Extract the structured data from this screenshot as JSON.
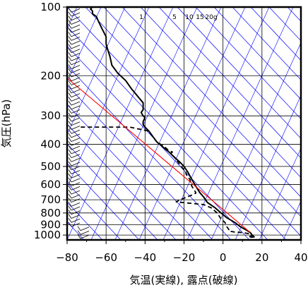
{
  "chart_data": {
    "type": "line",
    "title": "",
    "xlabel": "気温(実線), 露点(破線)",
    "ylabel": "気圧(hPa)",
    "xlim": [
      -80,
      40
    ],
    "ylim": [
      1050,
      100
    ],
    "y_scale": "log",
    "x_ticks": [
      -80,
      -60,
      -40,
      -20,
      0,
      20,
      40
    ],
    "x_tick_labels": [
      "−80",
      "−60",
      "−40",
      "−20",
      "0",
      "20",
      "40"
    ],
    "y_ticks": [
      100,
      200,
      300,
      400,
      500,
      600,
      700,
      800,
      900,
      1000
    ],
    "y_tick_labels": [
      "100",
      "200",
      "300",
      "400",
      "500",
      "600",
      "700",
      "800",
      "900",
      "1000"
    ],
    "mixing_ratio_labels": [
      "1",
      "5",
      "10",
      "15",
      "20g"
    ],
    "mixing_ratio_values": [
      1,
      5,
      10,
      15,
      20
    ],
    "colors": {
      "temperature": "#000000",
      "dewpoint": "#000000",
      "reference_line": "#ff0000",
      "background_lines": "#0000ff",
      "grid": "#000000"
    },
    "series": [
      {
        "style": "solid",
        "points": [
          [
            -67,
            100
          ],
          [
            -68,
            102
          ],
          [
            -67,
            104
          ],
          [
            -67,
            107
          ],
          [
            -65,
            110
          ],
          [
            -64,
            115
          ],
          [
            -62,
            125
          ],
          [
            -60,
            135
          ],
          [
            -60,
            145
          ],
          [
            -59,
            155
          ],
          [
            -58,
            165
          ],
          [
            -57,
            180
          ],
          [
            -54,
            195
          ],
          [
            -50,
            210
          ],
          [
            -47,
            228
          ],
          [
            -44,
            245
          ],
          [
            -41,
            263
          ],
          [
            -41,
            275
          ],
          [
            -41,
            282
          ],
          [
            -42,
            290
          ],
          [
            -41,
            300
          ],
          [
            -40,
            305
          ],
          [
            -41,
            318
          ],
          [
            -41,
            327
          ],
          [
            -40,
            336
          ],
          [
            -38,
            350
          ],
          [
            -36,
            370
          ],
          [
            -34,
            390
          ],
          [
            -31,
            410
          ],
          [
            -28,
            430
          ],
          [
            -25,
            455
          ],
          [
            -22,
            480
          ],
          [
            -20,
            500
          ],
          [
            -18,
            530
          ],
          [
            -16,
            570
          ],
          [
            -14,
            610
          ],
          [
            -12,
            650
          ],
          [
            -10,
            680
          ],
          [
            -8,
            720
          ],
          [
            -4,
            760
          ],
          [
            -1,
            800
          ],
          [
            2,
            840
          ],
          [
            6,
            880
          ],
          [
            9,
            920
          ],
          [
            12,
            950
          ],
          [
            14,
            975
          ],
          [
            15,
            1000
          ],
          [
            16,
            1018
          ],
          [
            14,
            1022
          ]
        ]
      },
      {
        "style": "dashed",
        "points": [
          [
            -73,
            336
          ],
          [
            -60,
            336
          ],
          [
            -48,
            336
          ],
          [
            -38,
            350
          ],
          [
            -36,
            370
          ],
          [
            -34,
            390
          ],
          [
            -30,
            410
          ],
          [
            -28,
            425
          ],
          [
            -26,
            432
          ],
          [
            -27,
            440
          ],
          [
            -25,
            455
          ],
          [
            -23,
            480
          ],
          [
            -21,
            505
          ],
          [
            -19,
            530
          ],
          [
            -19,
            540
          ],
          [
            -17,
            570
          ],
          [
            -16,
            610
          ],
          [
            -15,
            630
          ],
          [
            -14,
            650
          ],
          [
            -14,
            655
          ],
          [
            -16,
            668
          ],
          [
            -22,
            700
          ],
          [
            -24,
            715
          ],
          [
            -22,
            718
          ],
          [
            -10,
            735
          ],
          [
            -6,
            760
          ],
          [
            -3,
            800
          ],
          [
            -1,
            850
          ],
          [
            1,
            880
          ],
          [
            2,
            920
          ],
          [
            3,
            945
          ],
          [
            3,
            960
          ],
          [
            6,
            970
          ],
          [
            10,
            975
          ],
          [
            13,
            985
          ],
          [
            15,
            1000
          ],
          [
            14,
            1015
          ],
          [
            12,
            1020
          ]
        ]
      },
      {
        "style": "solid-red",
        "points": [
          [
            -80,
            205
          ],
          [
            14,
            975
          ]
        ]
      }
    ]
  }
}
